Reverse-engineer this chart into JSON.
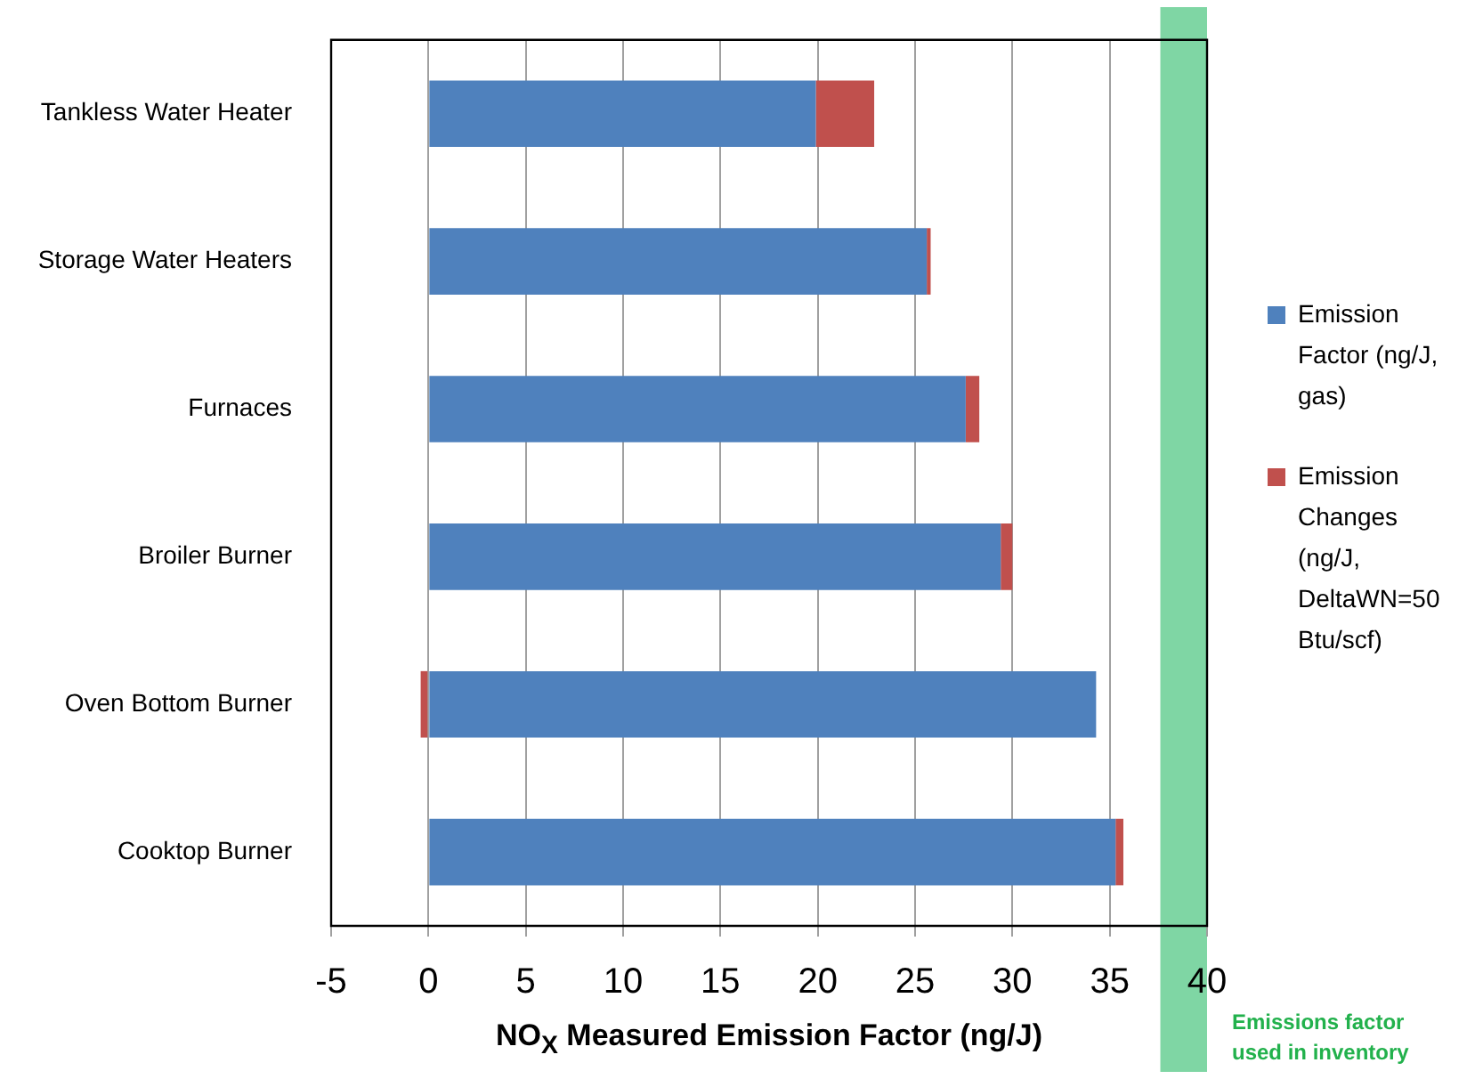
{
  "chart_data": {
    "type": "bar",
    "orientation": "horizontal",
    "stacked": true,
    "categories": [
      "Tankless Water Heater",
      "Storage Water Heaters",
      "Furnaces",
      "Broiler Burner",
      "Oven Bottom Burner",
      "Cooktop Burner"
    ],
    "series": [
      {
        "name": "Emission Factor (ng/J, gas)",
        "color": "#4f81bd",
        "values": [
          19.9,
          25.6,
          27.6,
          29.4,
          34.3,
          35.3
        ]
      },
      {
        "name": "Emission Changes (ng/J, DeltaWN=50 Btu/scf)",
        "color": "#c0504d",
        "values": [
          3.0,
          0.2,
          0.7,
          0.6,
          -0.4,
          0.4
        ]
      }
    ],
    "xlabel": "NO$_{X}$ Measured Emission Factor (ng/J)",
    "xlim": [
      -5,
      40
    ],
    "xticks": [
      -5,
      0,
      5,
      10,
      15,
      20,
      25,
      30,
      35,
      40
    ],
    "bands": [
      {
        "axis": "x",
        "from": 37.6,
        "to": 40,
        "label": "Emissions factor used in inventory",
        "color": "#7fd6a4"
      }
    ],
    "grid": "x",
    "legend": "right"
  }
}
